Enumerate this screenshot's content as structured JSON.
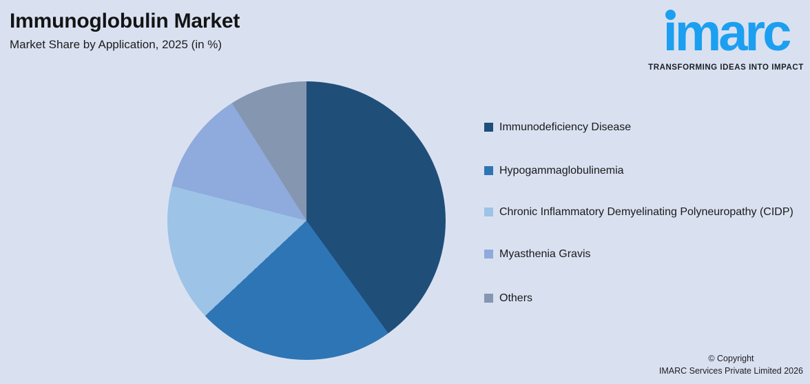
{
  "header": {
    "title": "Immunoglobulin Market",
    "subtitle": "Market Share by Application, 2025 (in %)"
  },
  "logo": {
    "word": "imarc",
    "tagline": "TRANSFORMING IDEAS INTO IMPACT",
    "brand_color": "#1C9FF0"
  },
  "chart_data": {
    "type": "pie",
    "title": "Immunoglobulin Market",
    "subtitle": "Market Share by Application, 2025 (in %)",
    "labels": [
      "Immunodeficiency Disease",
      "Hypogammaglobulinemia",
      "Chronic Inflammatory Demyelinating Polyneuropathy (CIDP)",
      "Myasthenia Gravis",
      "Others"
    ],
    "values": [
      40,
      23,
      16,
      12,
      9
    ],
    "colors": [
      "#1F4E79",
      "#2E75B6",
      "#9DC3E6",
      "#8FAADC",
      "#8496B0"
    ],
    "value_unit": "%",
    "start_angle_deg": 0,
    "direction": "clockwise",
    "legend_position": "right",
    "data_labels": false,
    "background_color": "#D9E1F1"
  },
  "footer": {
    "line1": "© Copyright",
    "line2": "IMARC Services Private Limited 2026"
  }
}
